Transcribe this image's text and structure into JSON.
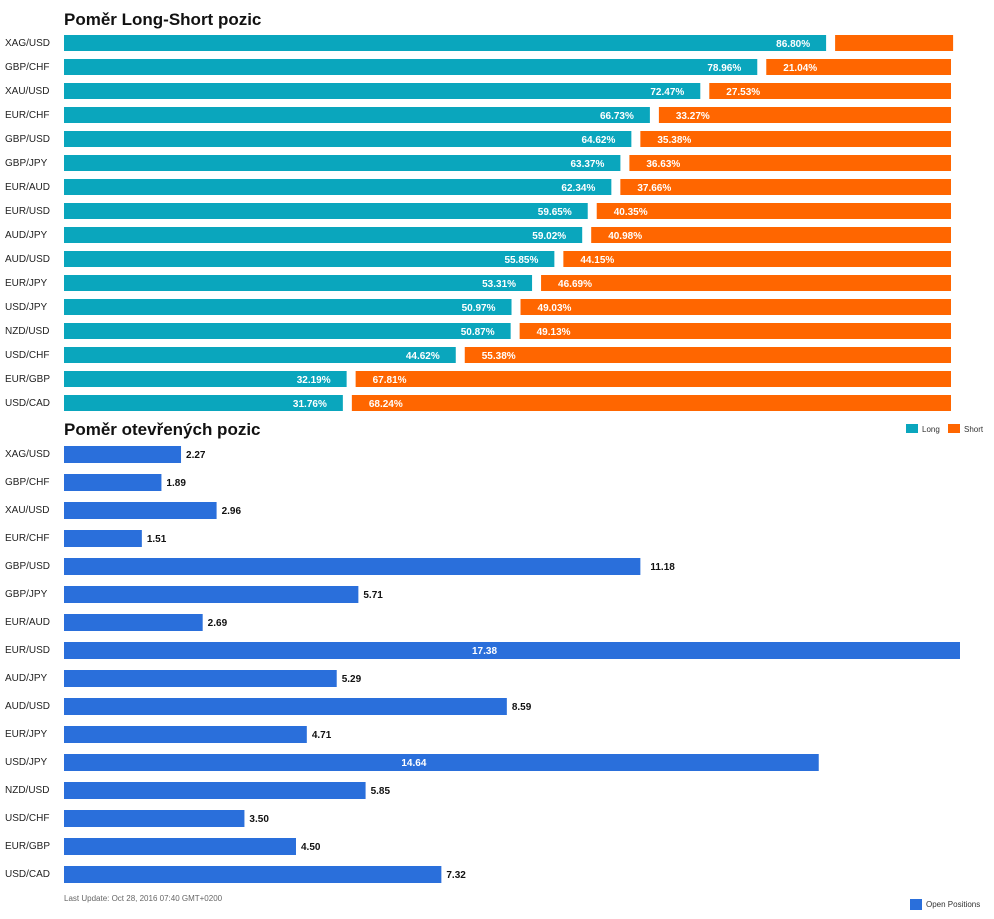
{
  "chart_data": [
    {
      "type": "bar",
      "stacked": true,
      "orientation": "horizontal",
      "title": "Poměr Long-Short pozic",
      "categories": [
        "XAG/USD",
        "GBP/CHF",
        "XAU/USD",
        "EUR/CHF",
        "GBP/USD",
        "GBP/JPY",
        "EUR/AUD",
        "EUR/USD",
        "AUD/JPY",
        "AUD/USD",
        "EUR/JPY",
        "USD/JPY",
        "NZD/USD",
        "USD/CHF",
        "EUR/GBP",
        "USD/CAD"
      ],
      "series": [
        {
          "name": "Long",
          "color": "#0aa6bd",
          "values": [
            86.8,
            78.96,
            72.47,
            66.73,
            64.62,
            63.37,
            62.34,
            59.65,
            59.02,
            55.85,
            53.31,
            50.97,
            50.87,
            44.62,
            32.19,
            31.76
          ],
          "labels": [
            "86.80%",
            "78.96%",
            "72.47%",
            "66.73%",
            "64.62%",
            "63.37%",
            "62.34%",
            "59.65%",
            "59.02%",
            "55.85%",
            "53.31%",
            "50.97%",
            "50.87%",
            "44.62%",
            "32.19%",
            "31.76%"
          ]
        },
        {
          "name": "Short",
          "color": "#ff6600",
          "values": [
            13.2,
            21.04,
            27.53,
            33.27,
            35.38,
            36.63,
            37.66,
            40.35,
            40.98,
            44.15,
            46.69,
            49.03,
            49.13,
            55.38,
            67.81,
            68.24
          ],
          "labels": [
            "",
            "21.04%",
            "27.53%",
            "33.27%",
            "35.38%",
            "36.63%",
            "37.66%",
            "40.35%",
            "40.98%",
            "44.15%",
            "46.69%",
            "49.03%",
            "49.13%",
            "55.38%",
            "67.81%",
            "68.24%"
          ]
        }
      ],
      "legend_position": "bottom-right"
    },
    {
      "type": "bar",
      "orientation": "horizontal",
      "title": "Poměr otevřených pozic",
      "categories": [
        "XAG/USD",
        "GBP/CHF",
        "XAU/USD",
        "EUR/CHF",
        "GBP/USD",
        "GBP/JPY",
        "EUR/AUD",
        "EUR/USD",
        "AUD/JPY",
        "AUD/USD",
        "EUR/JPY",
        "USD/JPY",
        "NZD/USD",
        "USD/CHF",
        "EUR/GBP",
        "USD/CAD"
      ],
      "series": [
        {
          "name": "Open Positions",
          "color": "#2a6fdb",
          "values": [
            2.27,
            1.89,
            2.96,
            1.51,
            11.18,
            5.71,
            2.69,
            17.38,
            5.29,
            8.59,
            4.71,
            14.64,
            5.85,
            3.5,
            4.5,
            7.32
          ],
          "labels": [
            "2.27",
            "1.89",
            "2.96",
            "1.51",
            "11.18",
            "5.71",
            "2.69",
            "17.38",
            "5.29",
            "8.59",
            "4.71",
            "14.64",
            "5.85",
            "3.50",
            "4.50",
            "7.32"
          ]
        }
      ],
      "legend_position": "bottom-right"
    }
  ],
  "footer": {
    "last_update": "Last Update: Oct 28, 2016 07:40 GMT+0200"
  }
}
